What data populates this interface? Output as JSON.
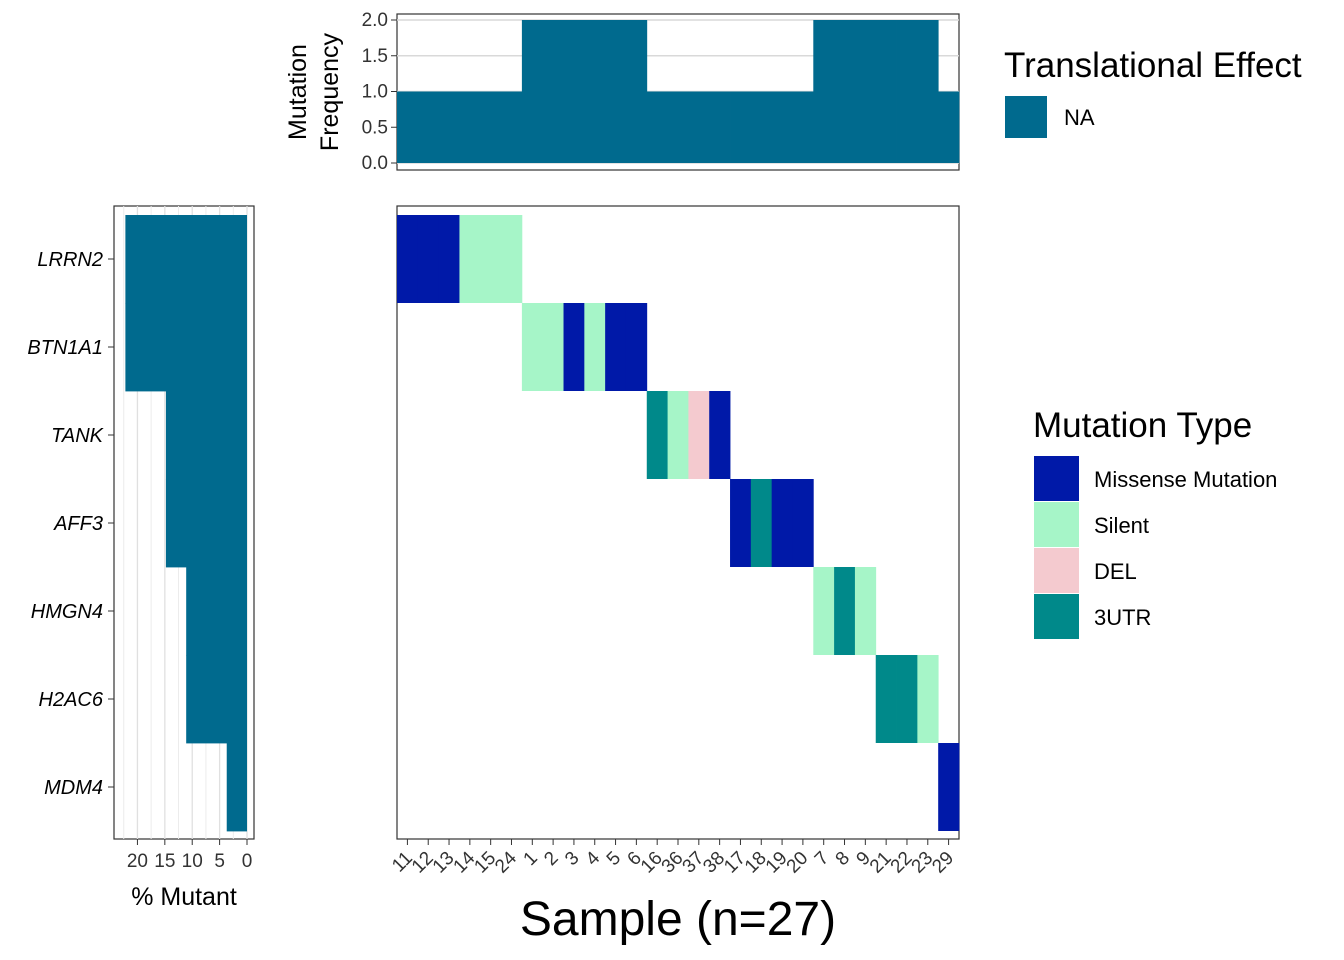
{
  "chart_data": {
    "type": "heatmap",
    "xlabel": "Sample (n=27)",
    "samples": [
      "11",
      "12",
      "13",
      "14",
      "15",
      "24",
      "1",
      "2",
      "3",
      "4",
      "5",
      "6",
      "16",
      "36",
      "37",
      "38",
      "17",
      "18",
      "19",
      "20",
      "7",
      "8",
      "9",
      "21",
      "22",
      "23",
      "29"
    ],
    "genes": [
      "LRRN2",
      "BTN1A1",
      "TANK",
      "AFF3",
      "HMGN4",
      "H2AC6",
      "MDM4"
    ],
    "mutations": [
      {
        "gene": "LRRN2",
        "sample": "11",
        "type": "Missense Mutation"
      },
      {
        "gene": "LRRN2",
        "sample": "12",
        "type": "Missense Mutation"
      },
      {
        "gene": "LRRN2",
        "sample": "13",
        "type": "Missense Mutation"
      },
      {
        "gene": "LRRN2",
        "sample": "14",
        "type": "Silent"
      },
      {
        "gene": "LRRN2",
        "sample": "15",
        "type": "Silent"
      },
      {
        "gene": "LRRN2",
        "sample": "24",
        "type": "Silent"
      },
      {
        "gene": "BTN1A1",
        "sample": "1",
        "type": "Silent"
      },
      {
        "gene": "BTN1A1",
        "sample": "2",
        "type": "Silent"
      },
      {
        "gene": "BTN1A1",
        "sample": "3",
        "type": "Missense Mutation"
      },
      {
        "gene": "BTN1A1",
        "sample": "4",
        "type": "Silent"
      },
      {
        "gene": "BTN1A1",
        "sample": "5",
        "type": "Missense Mutation"
      },
      {
        "gene": "BTN1A1",
        "sample": "6",
        "type": "Missense Mutation"
      },
      {
        "gene": "TANK",
        "sample": "16",
        "type": "3UTR"
      },
      {
        "gene": "TANK",
        "sample": "36",
        "type": "Silent"
      },
      {
        "gene": "TANK",
        "sample": "37",
        "type": "DEL"
      },
      {
        "gene": "TANK",
        "sample": "38",
        "type": "Missense Mutation"
      },
      {
        "gene": "AFF3",
        "sample": "17",
        "type": "Missense Mutation"
      },
      {
        "gene": "AFF3",
        "sample": "18",
        "type": "3UTR"
      },
      {
        "gene": "AFF3",
        "sample": "19",
        "type": "Missense Mutation"
      },
      {
        "gene": "AFF3",
        "sample": "20",
        "type": "Missense Mutation"
      },
      {
        "gene": "HMGN4",
        "sample": "7",
        "type": "Silent"
      },
      {
        "gene": "HMGN4",
        "sample": "8",
        "type": "3UTR"
      },
      {
        "gene": "HMGN4",
        "sample": "9",
        "type": "Silent"
      },
      {
        "gene": "H2AC6",
        "sample": "21",
        "type": "3UTR"
      },
      {
        "gene": "H2AC6",
        "sample": "22",
        "type": "3UTR"
      },
      {
        "gene": "H2AC6",
        "sample": "23",
        "type": "Silent"
      },
      {
        "gene": "MDM4",
        "sample": "29",
        "type": "Missense Mutation"
      }
    ],
    "mutation_types": [
      {
        "name": "Missense Mutation",
        "color": "#0019A8"
      },
      {
        "name": "Silent",
        "color": "#A6F5C8"
      },
      {
        "name": "DEL",
        "color": "#F4CACF"
      },
      {
        "name": "3UTR",
        "color": "#00898A"
      }
    ],
    "frequency_panel": {
      "ylabel_line1": "Mutation",
      "ylabel_line2": "Frequency",
      "ylim": [
        0,
        2.0
      ],
      "ticks": [
        "0.0",
        "0.5",
        "1.0",
        "1.5",
        "2.0"
      ],
      "tick_values": [
        0,
        0.5,
        1.0,
        1.5,
        2.0
      ],
      "values": [
        1,
        1,
        1,
        1,
        1,
        1,
        2,
        2,
        2,
        2,
        2,
        2,
        1,
        1,
        1,
        1,
        1,
        1,
        1,
        1,
        2,
        2,
        2,
        2,
        2,
        2,
        1
      ],
      "color": "#006A8E",
      "grid": true
    },
    "percent_panel": {
      "xlabel": "% Mutant",
      "ticks": [
        "20",
        "15",
        "10",
        "5",
        "0"
      ],
      "tick_values": [
        20,
        15,
        10,
        5,
        0
      ],
      "xlim_reversed": [
        23,
        0
      ],
      "values": [
        22.2,
        22.2,
        14.8,
        14.8,
        11.1,
        11.1,
        3.7
      ],
      "color": "#006A8E",
      "grid": true
    },
    "legend_translational": {
      "title": "Translational Effect",
      "items": [
        {
          "name": "NA",
          "color": "#006A8E"
        }
      ]
    },
    "legend_mutation": {
      "title": "Mutation Type"
    }
  }
}
